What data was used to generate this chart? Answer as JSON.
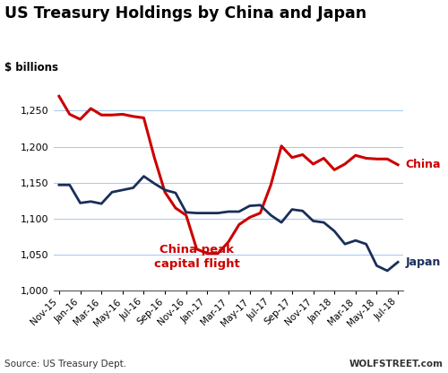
{
  "title": "US Treasury Holdings by China and Japan",
  "ylabel": "$ billions",
  "source": "Source: US Treasury Dept.",
  "watermark": "WOLFSTREET.com",
  "ylim": [
    1000,
    1300
  ],
  "yticks": [
    1000,
    1050,
    1100,
    1150,
    1200,
    1250
  ],
  "china_label": "China",
  "japan_label": "Japan",
  "annotation_line1": "China peak",
  "annotation_line2": "capital flight",
  "china_color": "#cc0000",
  "japan_color": "#1a2e5a",
  "grid_color": "#aaccee",
  "x_tick_labels": [
    "Nov-15",
    "Jan-16",
    "Mar-16",
    "May-16",
    "Jul-16",
    "Sep-16",
    "Nov-16",
    "Jan-17",
    "Mar-17",
    "May-17",
    "Jul-17",
    "Sep-17",
    "Nov-17",
    "Jan-18",
    "Mar-18",
    "May-18",
    "Jul-18"
  ],
  "x_tick_pos": [
    0,
    2,
    4,
    6,
    8,
    10,
    12,
    14,
    16,
    18,
    20,
    22,
    24,
    26,
    28,
    30,
    32
  ],
  "china_x": [
    0,
    1,
    2,
    3,
    4,
    5,
    6,
    7,
    8,
    9,
    10,
    11,
    12,
    13,
    14,
    15,
    16,
    17,
    18,
    19,
    20,
    21,
    22,
    23,
    24,
    25,
    26,
    27,
    28,
    29,
    30,
    31,
    32
  ],
  "china_y": [
    1270,
    1245,
    1238,
    1253,
    1244,
    1244,
    1245,
    1242,
    1240,
    1185,
    1137,
    1115,
    1105,
    1058,
    1052,
    1052,
    1068,
    1092,
    1102,
    1108,
    1147,
    1201,
    1185,
    1189,
    1176,
    1184,
    1168,
    1176,
    1188,
    1184,
    1183,
    1183,
    1175
  ],
  "japan_x": [
    0,
    1,
    2,
    3,
    4,
    5,
    6,
    7,
    8,
    9,
    10,
    11,
    12,
    13,
    14,
    15,
    16,
    17,
    18,
    19,
    20,
    21,
    22,
    23,
    24,
    25,
    26,
    27,
    28,
    29,
    30,
    31,
    32
  ],
  "japan_y": [
    1147,
    1147,
    1122,
    1124,
    1121,
    1137,
    1140,
    1143,
    1159,
    1149,
    1140,
    1136,
    1109,
    1108,
    1108,
    1108,
    1110,
    1110,
    1118,
    1119,
    1105,
    1095,
    1113,
    1111,
    1097,
    1095,
    1083,
    1065,
    1070,
    1065,
    1035,
    1028,
    1040
  ]
}
